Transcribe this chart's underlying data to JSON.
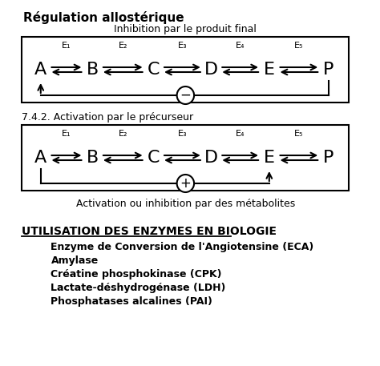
{
  "title": "Régulation allostérique",
  "subtitle1": "Inhibition par le produit final",
  "subtitle2": "7.4.2. Activation par le précurseur",
  "subtitle3": "Activation ou inhibition par des métabolites",
  "section_title": "UTILISATION DES ENZYMES EN BIOLOGIE",
  "enzymes": [
    "Enzyme de Conversion de l'Angiotensine (ECA)",
    "Amylase",
    "Créatine phosphokinase (CPK)",
    "Lactate-déshydrogénase (LDH)",
    "Phosphatases alcalines (PAI)"
  ],
  "nodes": [
    "A",
    "B",
    "C",
    "D",
    "E",
    "P"
  ],
  "enzymes_top": [
    "E₁",
    "E₂",
    "E₃",
    "E₄",
    "E₅"
  ],
  "bg_color": "#ffffff",
  "text_color": "#000000"
}
